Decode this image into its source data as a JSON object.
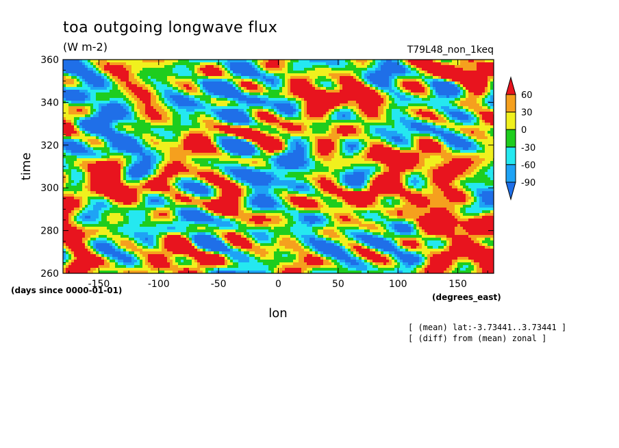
{
  "chart_data": {
    "type": "heatmap",
    "title": "toa outgoing longwave flux",
    "units": "(W m-2)",
    "run_label": "T79L48_non_1keq",
    "xlabel": "lon",
    "x_units": "(degrees_east)",
    "ylabel": "time",
    "y_units": "(days since 0000-01-01)",
    "xlim": [
      -180,
      180
    ],
    "ylim": [
      260,
      360
    ],
    "x_ticks": [
      -150,
      -100,
      -50,
      0,
      50,
      100,
      150
    ],
    "x_tick_labels": [
      "-150",
      "-100",
      "-50",
      "0",
      "50",
      "100",
      "150"
    ],
    "y_ticks": [
      260,
      280,
      300,
      320,
      340,
      360
    ],
    "y_tick_labels": [
      "260",
      "280",
      "300",
      "320",
      "340",
      "360"
    ],
    "notes": [
      "[ (mean) lat:-3.73441..3.73441 ]",
      "[ (diff) from (mean) zonal ]"
    ],
    "colorbar": {
      "levels": [
        -90,
        -60,
        -30,
        0,
        30,
        60
      ],
      "level_labels": [
        "-90",
        "-60",
        "-30",
        "0",
        "30",
        "60"
      ],
      "colors": [
        "#1f6fe8",
        "#1ea3f5",
        "#25e8f0",
        "#1ecd1e",
        "#f0f01e",
        "#f5a01e",
        "#e8141e"
      ],
      "extend": "both"
    }
  }
}
